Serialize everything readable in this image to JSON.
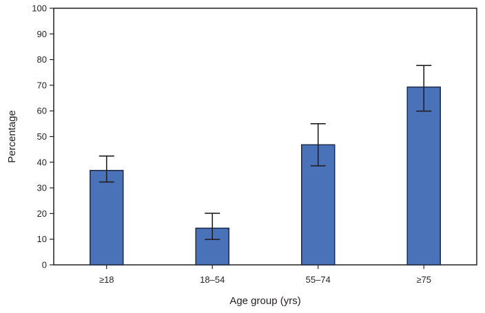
{
  "chart_data": {
    "type": "bar",
    "title": "",
    "xlabel": "Age group (yrs)",
    "ylabel": "Percentage",
    "categories": [
      "≥18",
      "18–54",
      "55–74",
      "≥75"
    ],
    "values": [
      36.8,
      14.3,
      46.8,
      69.3
    ],
    "error_low": [
      32.3,
      9.9,
      38.6,
      59.9
    ],
    "error_high": [
      42.4,
      20.1,
      55.0,
      77.7
    ],
    "ylim": [
      0,
      100
    ],
    "yticks": [
      "0",
      "10",
      "20",
      "30",
      "40",
      "50",
      "60",
      "70",
      "80",
      "90",
      "100"
    ],
    "grid": false,
    "legend": "none",
    "colors": {
      "bar_fill": "#4a72b8",
      "bar_stroke": "#1f2a44",
      "axis": "#231f20",
      "error_bar": "#231f20"
    }
  }
}
